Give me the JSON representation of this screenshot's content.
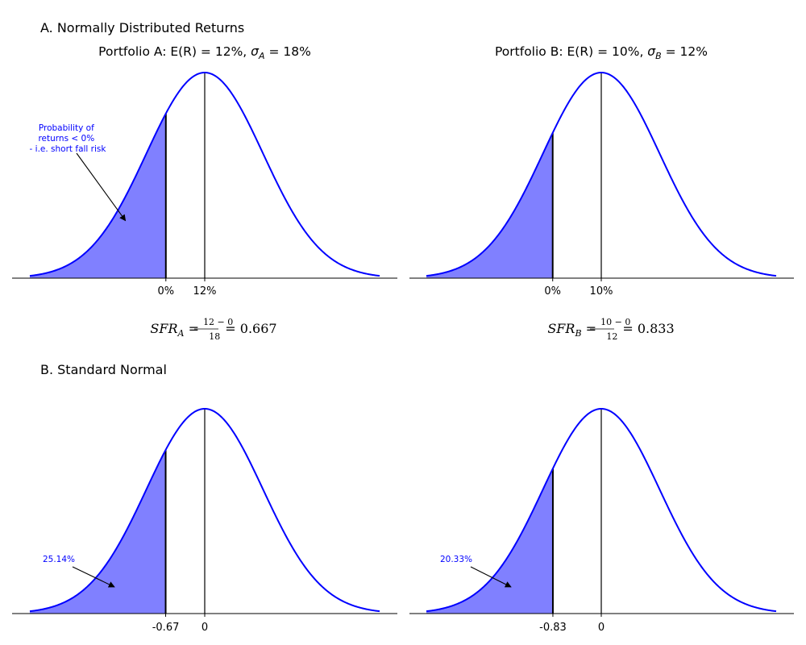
{
  "figure": {
    "section_a_title": "A. Normally Distributed Returns",
    "section_b_title": "B. Standard Normal"
  },
  "chart_data": [
    {
      "type": "area",
      "title_prefix": "Portfolio A: E(R) = 12%, ",
      "title_sigma": "σ",
      "title_sub": "A",
      "title_suffix": " = 18%",
      "mean": 12,
      "sd": 18,
      "xlim": [
        -15,
        45
      ],
      "x_range_plotted": [
        -42,
        66
      ],
      "threshold": 0,
      "shade_below_threshold": true,
      "vlines": [
        0,
        12
      ],
      "xticks": [
        0,
        12
      ],
      "xtick_labels": [
        "0%",
        "12%"
      ],
      "annotation": {
        "lines": [
          "Probability of",
          "returns < 0%",
          "- i.e. short fall risk"
        ],
        "arrow_points_to": {
          "x": -12.5,
          "fraction_of_peak": 0.28
        }
      },
      "formula": {
        "lhs": "SFR",
        "sub": "A",
        "num": "12 − 0",
        "den": "18",
        "result": "= 0.667"
      },
      "colors": {
        "curve": "#0000ff",
        "fill": "#8080ff",
        "vline": "#000000"
      }
    },
    {
      "type": "area",
      "title_prefix": "Portfolio B: E(R) = 10%, ",
      "title_sigma": "σ",
      "title_sub": "B",
      "title_suffix": " = 12%",
      "mean": 10,
      "sd": 12,
      "xlim": [
        -8,
        28
      ],
      "x_range_plotted": [
        -26,
        46
      ],
      "threshold": 0,
      "shade_below_threshold": true,
      "vlines": [
        0,
        10
      ],
      "xticks": [
        0,
        10
      ],
      "xtick_labels": [
        "0%",
        "10%"
      ],
      "formula": {
        "lhs": "SFR",
        "sub": "B",
        "num": "10 − 0",
        "den": "12",
        "result": "= 0.833"
      },
      "colors": {
        "curve": "#0000ff",
        "fill": "#8080ff",
        "vline": "#000000"
      }
    },
    {
      "type": "area",
      "mean": 0,
      "sd": 1,
      "xlim": [
        -3,
        3
      ],
      "threshold": -0.67,
      "shade_below_threshold": true,
      "vlines": [
        -0.67,
        0
      ],
      "xticks": [
        -0.67,
        0
      ],
      "xtick_labels": [
        "-0.67",
        "0"
      ],
      "annotation": {
        "lines": [
          "25.14%"
        ],
        "arrow_points_to": {
          "x": -1.55,
          "fraction_of_peak": 0.13
        }
      },
      "colors": {
        "curve": "#0000ff",
        "fill": "#8080ff",
        "vline": "#000000"
      }
    },
    {
      "type": "area",
      "mean": 0,
      "sd": 1,
      "xlim": [
        -3,
        3
      ],
      "threshold": -0.83,
      "shade_below_threshold": true,
      "vlines": [
        -0.83,
        0
      ],
      "xticks": [
        -0.83,
        0
      ],
      "xtick_labels": [
        "-0.83",
        "0"
      ],
      "annotation": {
        "lines": [
          "20.33%"
        ],
        "arrow_points_to": {
          "x": -1.55,
          "fraction_of_peak": 0.13
        }
      },
      "colors": {
        "curve": "#0000ff",
        "fill": "#8080ff",
        "vline": "#000000"
      }
    }
  ]
}
